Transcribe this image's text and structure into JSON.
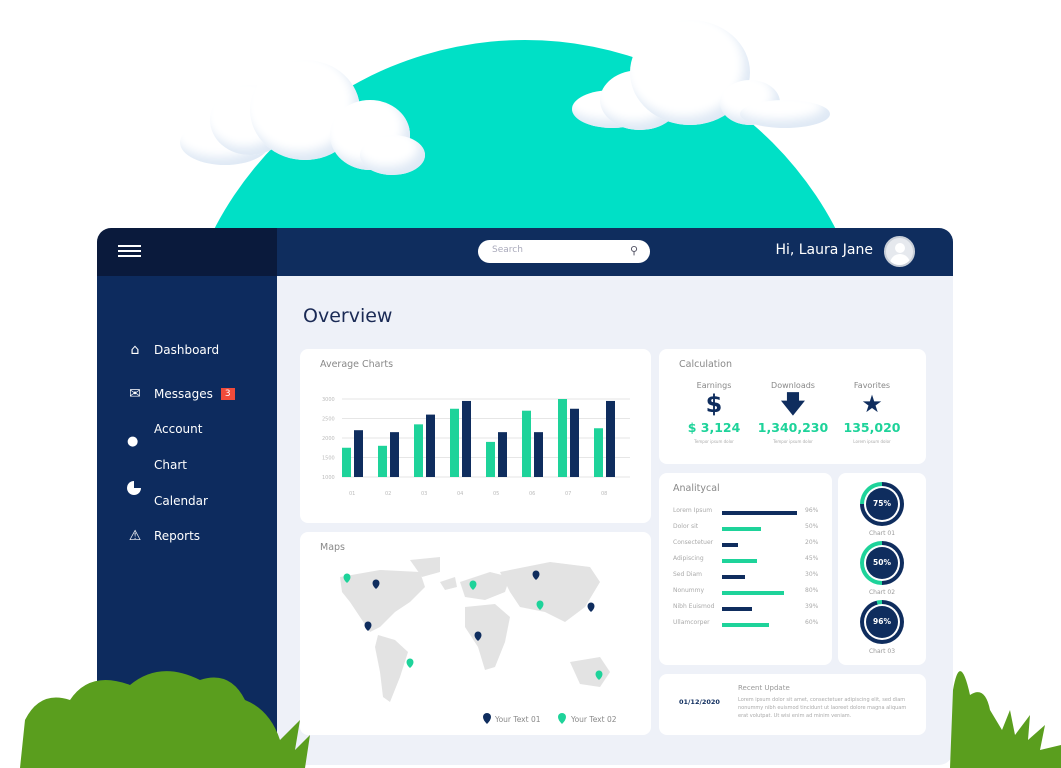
{
  "header": {
    "search_placeholder": "Search",
    "greeting": "Hi, Laura Jane"
  },
  "sidebar": {
    "items": [
      {
        "label": "Dashboard",
        "icon": "home-icon"
      },
      {
        "label": "Messages",
        "icon": "mail-icon",
        "badge": "3"
      },
      {
        "label": "Account",
        "icon": "user-icon"
      },
      {
        "label": "Chart",
        "icon": "pie-chart-icon"
      },
      {
        "label": "Calendar",
        "icon": "calendar-icon"
      },
      {
        "label": "Reports",
        "icon": "warning-icon"
      }
    ]
  },
  "main": {
    "title": "Overview"
  },
  "colors": {
    "navy": "#0f2d5e",
    "teal": "#1ed39a",
    "red_badge": "#f04b3a",
    "sky": "#00e0c6"
  },
  "chart_data": {
    "type": "bar",
    "title": "Average Charts",
    "categories": [
      "01",
      "02",
      "03",
      "04",
      "05",
      "06",
      "07",
      "08"
    ],
    "yticks": [
      "1000",
      "1500",
      "2000",
      "2500",
      "3000"
    ],
    "ylim": [
      1000,
      3000
    ],
    "grid": true,
    "series": [
      {
        "color": "#1ed39a",
        "values": [
          1750,
          1800,
          2350,
          2750,
          1900,
          2700,
          3000,
          2250
        ]
      },
      {
        "color": "#0f2d5e",
        "values": [
          2200,
          2150,
          2600,
          2950,
          2150,
          2150,
          2750,
          2950
        ]
      }
    ]
  },
  "calculation": {
    "title": "Calculation",
    "items": [
      {
        "label": "Earnings",
        "icon": "dollar-icon",
        "value": "$ 3,124",
        "sub": "Tempor ipsum dolor"
      },
      {
        "label": "Downloads",
        "icon": "download-arrow-icon",
        "value": "1,340,230",
        "sub": "Tempor ipsum dolor"
      },
      {
        "label": "Favorites",
        "icon": "star-icon",
        "value": "135,020",
        "sub": "Lorem ipsum dolor"
      }
    ]
  },
  "analytical": {
    "title": "Analitycal",
    "rows": [
      {
        "label": "Lorem Ipsum",
        "pct": 96,
        "text": "96%",
        "color": "#0f2d5e"
      },
      {
        "label": "Dolor sit",
        "pct": 50,
        "text": "50%",
        "color": "#1ed39a"
      },
      {
        "label": "Consectetuer",
        "pct": 20,
        "text": "20%",
        "color": "#0f2d5e"
      },
      {
        "label": "Adipiscing",
        "pct": 45,
        "text": "45%",
        "color": "#1ed39a"
      },
      {
        "label": "Sed Diam",
        "pct": 30,
        "text": "30%",
        "color": "#0f2d5e"
      },
      {
        "label": "Nonummy",
        "pct": 80,
        "text": "80%",
        "color": "#1ed39a"
      },
      {
        "label": "Nibh Euismod",
        "pct": 39,
        "text": "39%",
        "color": "#0f2d5e"
      },
      {
        "label": "Ullamcorper",
        "pct": 60,
        "text": "60%",
        "color": "#1ed39a"
      }
    ]
  },
  "donuts": [
    {
      "value": 75,
      "text": "75%",
      "label": "Chart 01"
    },
    {
      "value": 50,
      "text": "50%",
      "label": "Chart 02"
    },
    {
      "value": 96,
      "text": "96%",
      "label": "Chart 03"
    }
  ],
  "maps": {
    "title": "Maps",
    "legend": [
      {
        "label": "Your Text 01",
        "color": "#0f2d5e"
      },
      {
        "label": "Your Text 02",
        "color": "#1ed39a"
      }
    ]
  },
  "recent": {
    "date": "01/12/2020",
    "title": "Recent Update",
    "text": "Lorem ipsum dolor sit amet, consectetuer adipiscing elit, sed diam nonummy nibh euismod tincidunt ut laoreet dolore magna aliquam erat volutpat. Ut wisi enim ad minim veniam."
  }
}
